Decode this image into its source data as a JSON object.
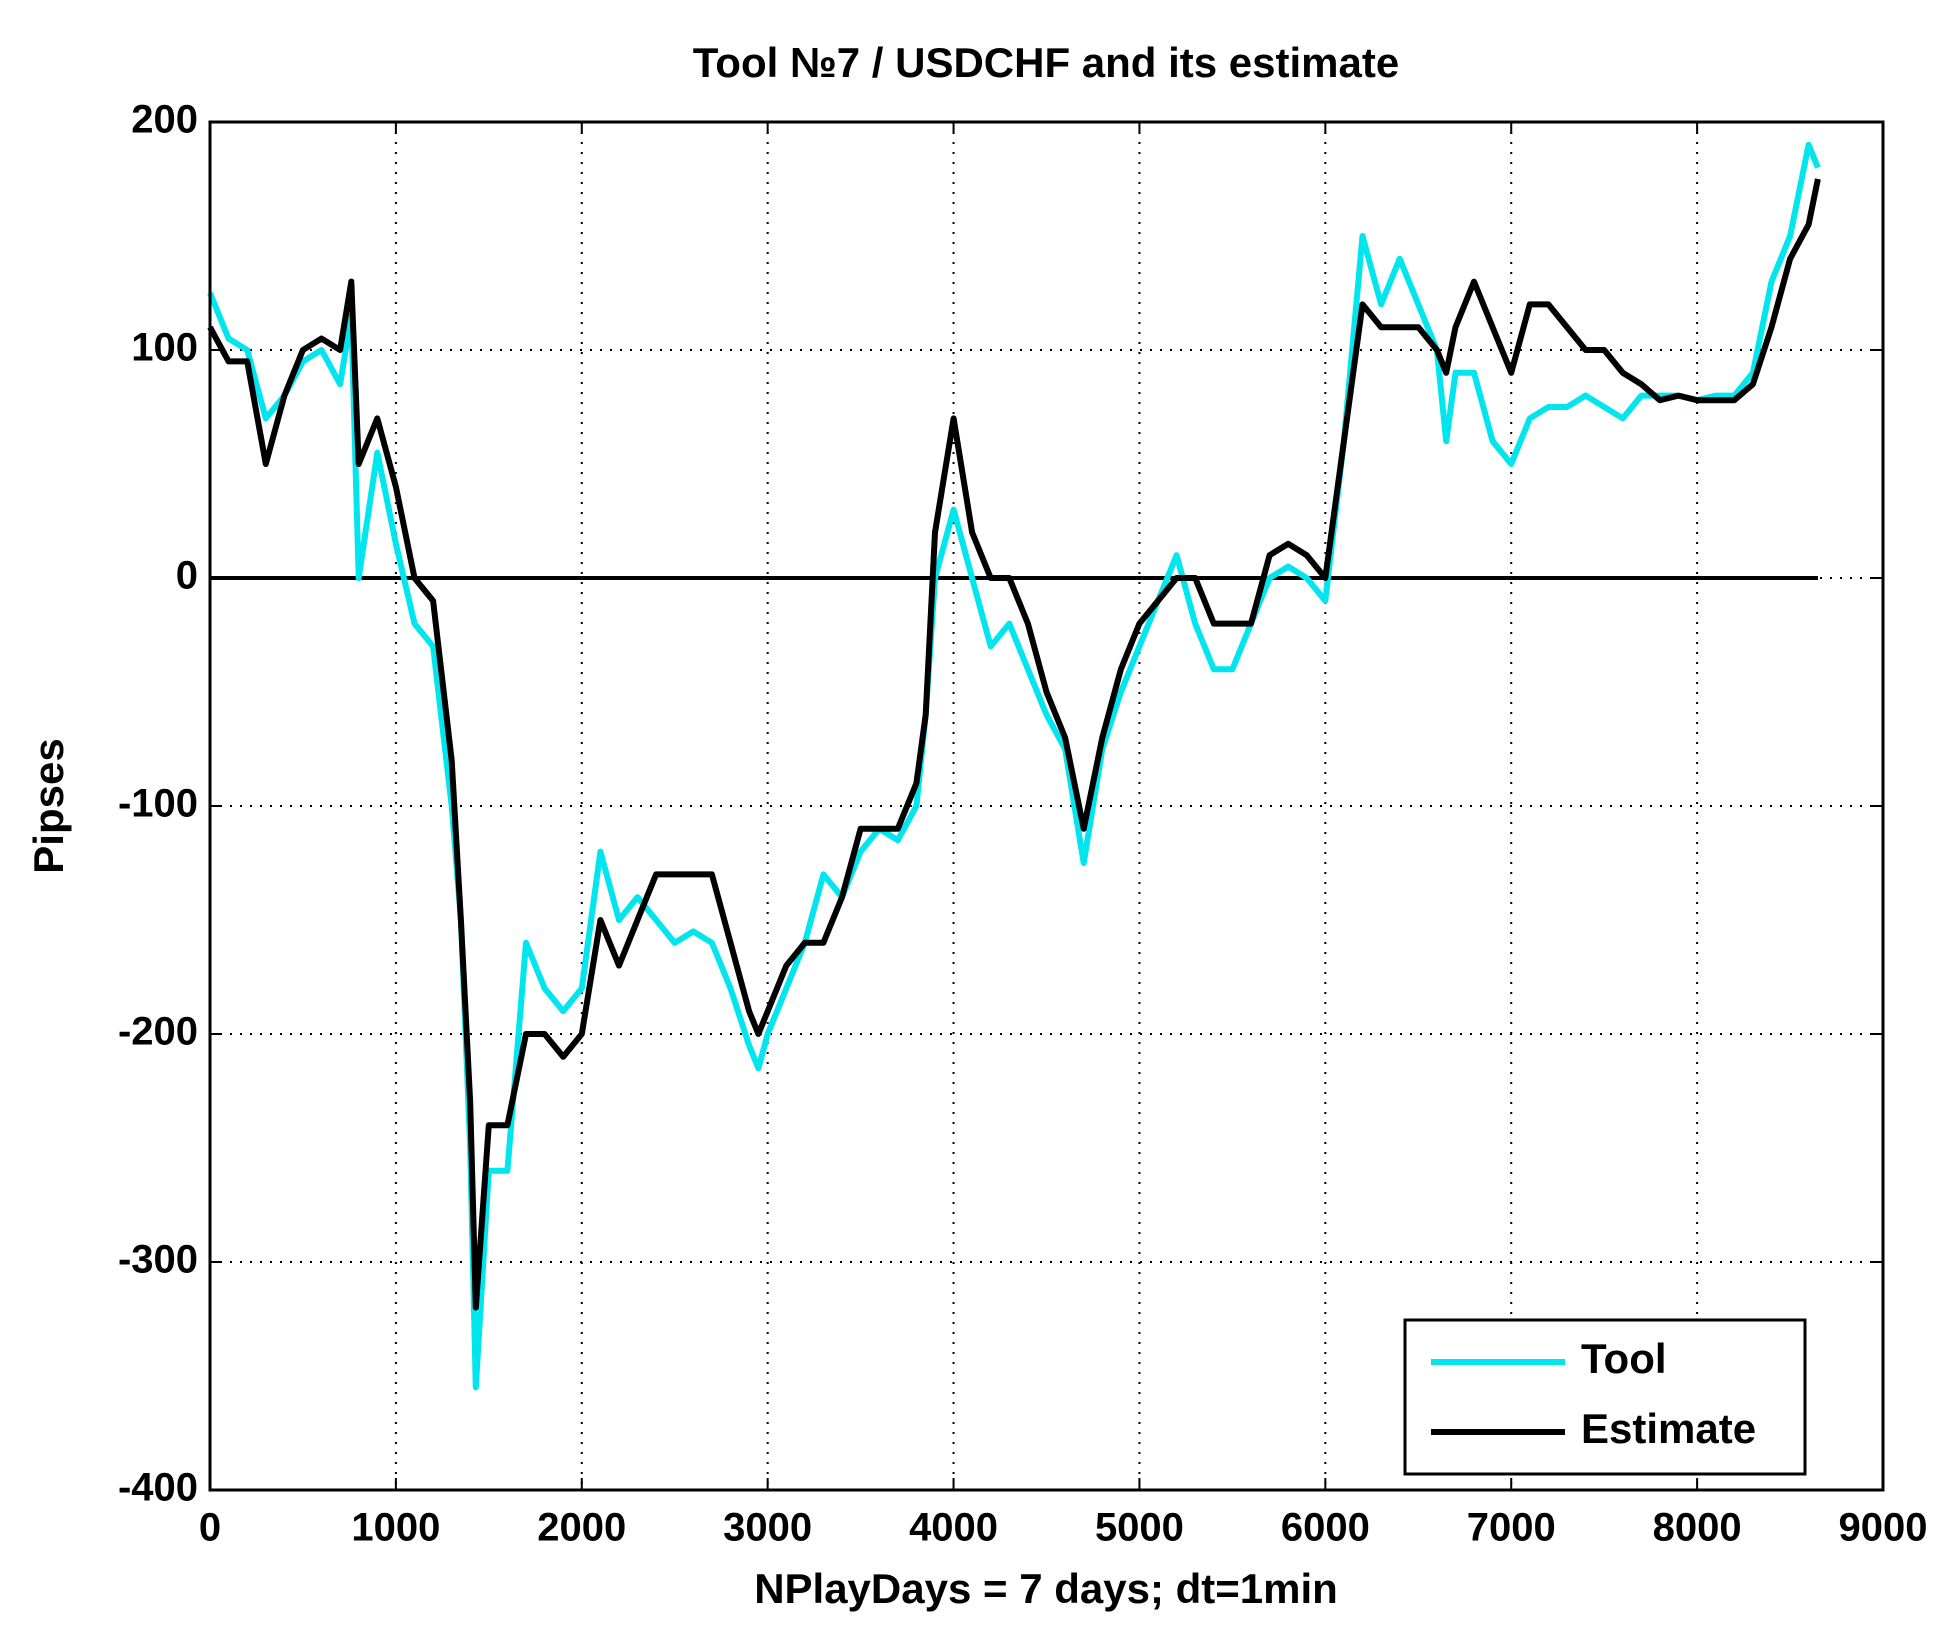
{
  "chart_data": {
    "type": "line",
    "title": "Tool  №7 / USDCHF and its estimate",
    "xlabel": "NPlayDays = 7 days;  dt=1min",
    "ylabel": "Pipses",
    "x": [
      0,
      100,
      200,
      300,
      400,
      500,
      600,
      700,
      760,
      800,
      900,
      1000,
      1100,
      1200,
      1300,
      1350,
      1400,
      1430,
      1500,
      1600,
      1700,
      1800,
      1900,
      2000,
      2100,
      2200,
      2300,
      2400,
      2500,
      2600,
      2700,
      2800,
      2900,
      2950,
      3000,
      3100,
      3200,
      3300,
      3400,
      3500,
      3600,
      3700,
      3800,
      3850,
      3900,
      4000,
      4100,
      4200,
      4300,
      4400,
      4500,
      4600,
      4700,
      4800,
      4900,
      5000,
      5100,
      5200,
      5300,
      5400,
      5500,
      5600,
      5700,
      5800,
      5900,
      6000,
      6050,
      6100,
      6200,
      6300,
      6400,
      6500,
      6600,
      6650,
      6700,
      6800,
      6900,
      7000,
      7100,
      7200,
      7300,
      7400,
      7500,
      7600,
      7700,
      7800,
      7900,
      8000,
      8100,
      8200,
      8300,
      8400,
      8500,
      8600,
      8650
    ],
    "series": [
      {
        "name": "Tool",
        "color": "#00e5ee",
        "values": [
          125,
          105,
          100,
          70,
          80,
          95,
          100,
          85,
          115,
          0,
          55,
          15,
          -20,
          -30,
          -100,
          -150,
          -250,
          -355,
          -260,
          -260,
          -160,
          -180,
          -190,
          -180,
          -120,
          -150,
          -140,
          -150,
          -160,
          -155,
          -160,
          -180,
          -205,
          -215,
          -200,
          -180,
          -160,
          -130,
          -140,
          -120,
          -110,
          -115,
          -100,
          -60,
          0,
          30,
          0,
          -30,
          -20,
          -40,
          -60,
          -75,
          -125,
          -75,
          -50,
          -30,
          -10,
          10,
          -20,
          -40,
          -40,
          -20,
          0,
          5,
          0,
          -10,
          25,
          60,
          150,
          120,
          140,
          120,
          100,
          60,
          90,
          90,
          60,
          50,
          70,
          75,
          75,
          80,
          75,
          70,
          80,
          80,
          80,
          78,
          80,
          80,
          90,
          130,
          150,
          190,
          180
        ]
      },
      {
        "name": "Estimate",
        "color": "#000000",
        "values": [
          110,
          95,
          95,
          50,
          80,
          100,
          105,
          100,
          130,
          50,
          70,
          40,
          0,
          -10,
          -80,
          -150,
          -230,
          -320,
          -240,
          -240,
          -200,
          -200,
          -210,
          -200,
          -150,
          -170,
          -150,
          -130,
          -130,
          -130,
          -130,
          -160,
          -190,
          -200,
          -190,
          -170,
          -160,
          -160,
          -140,
          -110,
          -110,
          -110,
          -90,
          -60,
          20,
          70,
          20,
          0,
          0,
          -20,
          -50,
          -70,
          -110,
          -70,
          -40,
          -20,
          -10,
          0,
          0,
          -20,
          -20,
          -20,
          10,
          15,
          10,
          0,
          30,
          60,
          120,
          110,
          110,
          110,
          100,
          90,
          110,
          130,
          110,
          90,
          120,
          120,
          110,
          100,
          100,
          90,
          85,
          78,
          80,
          78,
          78,
          78,
          85,
          110,
          140,
          155,
          175
        ]
      }
    ],
    "hline": 0,
    "xlim": [
      0,
      9000
    ],
    "xticks": [
      0,
      1000,
      2000,
      3000,
      4000,
      5000,
      6000,
      7000,
      8000,
      9000
    ],
    "ylim": [
      -400,
      200
    ],
    "yticks": [
      -400,
      -300,
      -200,
      -100,
      0,
      100,
      200
    ],
    "grid": true,
    "legend": "lower right"
  }
}
